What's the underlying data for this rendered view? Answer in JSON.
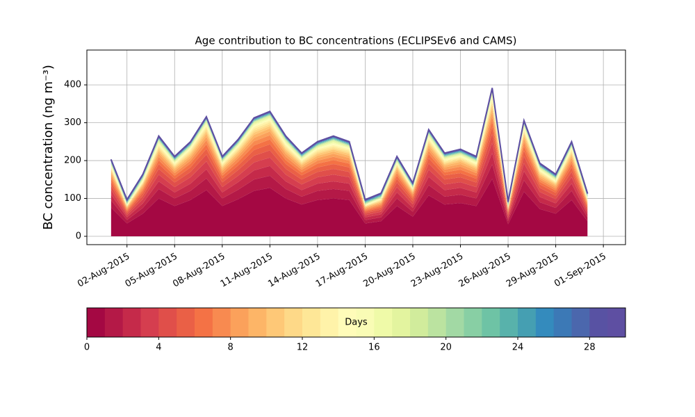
{
  "chart_data": {
    "type": "stacked_area",
    "title": "Age contribution to BC concentrations (ECLIPSEv6 and CAMS)",
    "ylabel": "BC concentration (ng m⁻³)",
    "x": [
      "2015-08-01",
      "2015-08-02",
      "2015-08-03",
      "2015-08-04",
      "2015-08-05",
      "2015-08-06",
      "2015-08-07",
      "2015-08-08",
      "2015-08-09",
      "2015-08-10",
      "2015-08-11",
      "2015-08-12",
      "2015-08-13",
      "2015-08-14",
      "2015-08-15",
      "2015-08-16",
      "2015-08-17",
      "2015-08-18",
      "2015-08-19",
      "2015-08-20",
      "2015-08-21",
      "2015-08-22",
      "2015-08-23",
      "2015-08-24",
      "2015-08-25",
      "2015-08-26",
      "2015-08-27",
      "2015-08-28",
      "2015-08-29",
      "2015-08-30",
      "2015-08-31"
    ],
    "xlim": [
      "2015-07-31",
      "2015-09-02"
    ],
    "xticks": [
      {
        "value": "2015-08-02",
        "label": "02-Aug-2015"
      },
      {
        "value": "2015-08-05",
        "label": "05-Aug-2015"
      },
      {
        "value": "2015-08-08",
        "label": "08-Aug-2015"
      },
      {
        "value": "2015-08-11",
        "label": "11-Aug-2015"
      },
      {
        "value": "2015-08-14",
        "label": "14-Aug-2015"
      },
      {
        "value": "2015-08-17",
        "label": "17-Aug-2015"
      },
      {
        "value": "2015-08-20",
        "label": "20-Aug-2015"
      },
      {
        "value": "2015-08-23",
        "label": "23-Aug-2015"
      },
      {
        "value": "2015-08-26",
        "label": "26-Aug-2015"
      },
      {
        "value": "2015-08-29",
        "label": "29-Aug-2015"
      },
      {
        "value": "2015-09-01",
        "label": "01-Sep-2015"
      }
    ],
    "ylim": [
      -22,
      492
    ],
    "yticks": [
      0,
      100,
      200,
      300,
      400
    ],
    "grid": true,
    "series": [
      {
        "color": "#a40843",
        "values": [
          76,
          34,
          60,
          100,
          80,
          96,
          122,
          80,
          98,
          120,
          128,
          100,
          84,
          96,
          100,
          96,
          34,
          40,
          80,
          52,
          108,
          84,
          88,
          80,
          152,
          32,
          118,
          72,
          60,
          96,
          40
        ]
      },
      {
        "color": "#b41947",
        "values": [
          19,
          9,
          15,
          25,
          20,
          24,
          31,
          20,
          25,
          30,
          32,
          25,
          21,
          24,
          25,
          24,
          9,
          10,
          20,
          13,
          27,
          21,
          22,
          20,
          38,
          8,
          30,
          18,
          15,
          24,
          10
        ]
      },
      {
        "color": "#c52a4a",
        "values": [
          15,
          7,
          12,
          20,
          16,
          19,
          24,
          16,
          20,
          24,
          26,
          20,
          17,
          19,
          20,
          19,
          7,
          8,
          16,
          10,
          22,
          17,
          18,
          16,
          30,
          6,
          24,
          14,
          12,
          19,
          8
        ]
      },
      {
        "color": "#d53e4f",
        "values": [
          13,
          6,
          11,
          18,
          14,
          17,
          21,
          14,
          17,
          21,
          22,
          18,
          15,
          17,
          18,
          17,
          6,
          7,
          14,
          9,
          19,
          15,
          15,
          14,
          27,
          6,
          21,
          13,
          11,
          17,
          7
        ]
      },
      {
        "color": "#e04f4a",
        "values": [
          11,
          5,
          9,
          15,
          12,
          14,
          18,
          12,
          15,
          18,
          19,
          15,
          13,
          14,
          15,
          14,
          5,
          6,
          12,
          8,
          16,
          13,
          13,
          12,
          23,
          5,
          18,
          11,
          9,
          14,
          6
        ]
      },
      {
        "color": "#ea6046",
        "values": [
          10,
          4,
          8,
          13,
          10,
          12,
          15,
          10,
          12,
          15,
          16,
          13,
          11,
          12,
          13,
          12,
          4,
          5,
          10,
          7,
          14,
          11,
          11,
          10,
          19,
          4,
          15,
          9,
          8,
          12,
          5
        ]
      },
      {
        "color": "#f47245",
        "values": [
          8,
          3,
          6,
          10,
          8,
          10,
          12,
          8,
          10,
          12,
          13,
          10,
          8,
          10,
          10,
          10,
          3,
          4,
          8,
          5,
          11,
          8,
          9,
          8,
          15,
          3,
          12,
          7,
          6,
          10,
          4
        ]
      },
      {
        "color": "#f88a50",
        "values": [
          7,
          3,
          5,
          9,
          7,
          8,
          11,
          7,
          9,
          11,
          11,
          9,
          7,
          8,
          9,
          8,
          3,
          4,
          7,
          5,
          9,
          7,
          8,
          7,
          13,
          3,
          10,
          6,
          5,
          8,
          4
        ]
      },
      {
        "color": "#fba15b",
        "values": [
          6,
          3,
          5,
          8,
          6,
          7,
          9,
          6,
          7,
          9,
          10,
          8,
          6,
          7,
          8,
          7,
          3,
          3,
          6,
          4,
          8,
          6,
          7,
          6,
          11,
          2,
          9,
          5,
          5,
          7,
          3
        ]
      },
      {
        "color": "#fdb567",
        "values": [
          5,
          2,
          4,
          6,
          5,
          6,
          8,
          5,
          6,
          8,
          8,
          6,
          5,
          6,
          6,
          6,
          2,
          3,
          5,
          3,
          7,
          5,
          6,
          5,
          10,
          2,
          7,
          5,
          4,
          6,
          3
        ]
      },
      {
        "color": "#fec877",
        "values": [
          4,
          2,
          3,
          5,
          4,
          5,
          6,
          4,
          5,
          6,
          6,
          5,
          4,
          5,
          5,
          5,
          2,
          2,
          4,
          3,
          5,
          4,
          4,
          4,
          8,
          2,
          6,
          4,
          3,
          5,
          2
        ]
      },
      {
        "color": "#fed988",
        "values": [
          3,
          1,
          2,
          4,
          3,
          4,
          5,
          3,
          4,
          5,
          5,
          4,
          3,
          4,
          4,
          4,
          1,
          2,
          3,
          2,
          4,
          3,
          3,
          3,
          6,
          1,
          4,
          3,
          2,
          4,
          2
        ]
      },
      {
        "color": "#fee797",
        "values": [
          3,
          1,
          2,
          4,
          3,
          4,
          5,
          3,
          4,
          5,
          5,
          4,
          3,
          4,
          4,
          4,
          1,
          2,
          3,
          2,
          4,
          3,
          3,
          3,
          6,
          1,
          4,
          3,
          2,
          4,
          2
        ]
      },
      {
        "color": "#fff3a9",
        "values": [
          3,
          1,
          2,
          4,
          3,
          4,
          5,
          3,
          4,
          5,
          5,
          4,
          3,
          4,
          4,
          4,
          1,
          2,
          3,
          2,
          4,
          3,
          3,
          3,
          6,
          1,
          4,
          3,
          2,
          4,
          2
        ]
      },
      {
        "color": "#fffcb9",
        "values": [
          2,
          1,
          2,
          3,
          2,
          2,
          3,
          2,
          2,
          3,
          3,
          3,
          2,
          2,
          3,
          2,
          1,
          1,
          2,
          1,
          3,
          2,
          2,
          2,
          4,
          1,
          3,
          2,
          2,
          2,
          1
        ]
      },
      {
        "color": "#f9fcb5",
        "values": [
          2,
          1,
          2,
          3,
          2,
          2,
          3,
          2,
          2,
          3,
          3,
          3,
          2,
          2,
          3,
          2,
          1,
          1,
          2,
          1,
          3,
          2,
          2,
          2,
          4,
          1,
          3,
          2,
          2,
          2,
          1
        ]
      },
      {
        "color": "#effaa8",
        "values": [
          2,
          1,
          2,
          3,
          2,
          2,
          3,
          2,
          2,
          3,
          3,
          3,
          2,
          2,
          3,
          2,
          1,
          1,
          2,
          1,
          3,
          2,
          2,
          2,
          4,
          1,
          3,
          2,
          2,
          2,
          1
        ]
      },
      {
        "color": "#e3f49f",
        "values": [
          2,
          1,
          2,
          3,
          2,
          2,
          3,
          2,
          2,
          3,
          3,
          3,
          2,
          2,
          3,
          2,
          1,
          1,
          2,
          1,
          3,
          2,
          2,
          2,
          4,
          1,
          3,
          2,
          2,
          2,
          1
        ]
      },
      {
        "color": "#d1ec9c",
        "values": [
          1,
          1,
          1,
          1,
          1,
          1,
          1,
          1,
          1,
          1,
          1,
          1,
          1,
          1,
          1,
          1,
          1,
          1,
          1,
          1,
          1,
          1,
          1,
          1,
          1,
          1,
          1,
          1,
          1,
          1,
          1
        ]
      },
      {
        "color": "#bbe3a0",
        "values": [
          1,
          1,
          1,
          1,
          1,
          1,
          1,
          1,
          1,
          1,
          1,
          1,
          1,
          1,
          1,
          1,
          1,
          1,
          1,
          1,
          1,
          1,
          1,
          1,
          1,
          1,
          1,
          1,
          1,
          1,
          1
        ]
      },
      {
        "color": "#a2d9a4",
        "values": [
          1,
          1,
          1,
          1,
          1,
          1,
          1,
          1,
          1,
          1,
          1,
          1,
          1,
          1,
          1,
          1,
          1,
          1,
          1,
          1,
          1,
          1,
          1,
          1,
          1,
          1,
          1,
          1,
          1,
          1,
          1
        ]
      },
      {
        "color": "#88cfa4",
        "values": [
          1,
          1,
          1,
          1,
          1,
          1,
          1,
          1,
          1,
          1,
          1,
          1,
          1,
          1,
          1,
          1,
          1,
          1,
          1,
          1,
          1,
          1,
          1,
          1,
          1,
          1,
          1,
          1,
          1,
          1,
          1
        ]
      },
      {
        "color": "#6ec3a5",
        "values": [
          1,
          1,
          1,
          1,
          1,
          1,
          1,
          1,
          1,
          1,
          1,
          1,
          1,
          1,
          1,
          1,
          1,
          1,
          1,
          1,
          1,
          1,
          1,
          1,
          1,
          1,
          1,
          1,
          1,
          1,
          1
        ]
      },
      {
        "color": "#58b2ab",
        "values": [
          1,
          1,
          1,
          1,
          1,
          1,
          1,
          1,
          1,
          1,
          1,
          1,
          1,
          1,
          1,
          1,
          1,
          1,
          1,
          1,
          1,
          1,
          1,
          1,
          1,
          1,
          1,
          1,
          1,
          1,
          1
        ]
      },
      {
        "color": "#459fb2",
        "values": [
          1,
          1,
          1,
          1,
          1,
          1,
          1,
          1,
          1,
          1,
          1,
          1,
          1,
          1,
          1,
          1,
          1,
          1,
          1,
          1,
          1,
          1,
          1,
          1,
          1,
          1,
          1,
          1,
          1,
          1,
          1
        ]
      },
      {
        "color": "#348bbd",
        "values": [
          1,
          1,
          1,
          1,
          1,
          1,
          1,
          1,
          1,
          1,
          1,
          1,
          1,
          1,
          1,
          1,
          1,
          1,
          1,
          1,
          1,
          1,
          1,
          1,
          1,
          1,
          1,
          1,
          1,
          1,
          1
        ]
      },
      {
        "color": "#3c79b6",
        "values": [
          1,
          1,
          1,
          1,
          1,
          1,
          1,
          1,
          1,
          1,
          1,
          1,
          1,
          1,
          1,
          1,
          1,
          1,
          1,
          1,
          1,
          1,
          1,
          1,
          1,
          1,
          1,
          1,
          1,
          1,
          1
        ]
      },
      {
        "color": "#4b67ad",
        "values": [
          1,
          1,
          1,
          1,
          1,
          1,
          1,
          1,
          1,
          1,
          1,
          1,
          1,
          1,
          1,
          1,
          1,
          1,
          1,
          1,
          1,
          1,
          1,
          1,
          1,
          1,
          1,
          1,
          1,
          1,
          1
        ]
      },
      {
        "color": "#5852a3",
        "values": [
          1,
          1,
          1,
          1,
          1,
          1,
          1,
          1,
          1,
          1,
          1,
          1,
          1,
          1,
          1,
          1,
          1,
          1,
          1,
          1,
          1,
          1,
          1,
          1,
          1,
          1,
          1,
          1,
          1,
          1,
          1
        ]
      },
      {
        "color": "#5e4fa2",
        "values": [
          1,
          1,
          1,
          1,
          1,
          1,
          1,
          1,
          1,
          1,
          1,
          1,
          1,
          1,
          1,
          1,
          1,
          1,
          1,
          1,
          1,
          1,
          1,
          1,
          1,
          1,
          1,
          1,
          1,
          1,
          1
        ]
      }
    ],
    "colorbar": {
      "label": "Days",
      "lim": [
        0,
        30
      ],
      "ticks": [
        0,
        4,
        8,
        12,
        16,
        20,
        24,
        28
      ]
    }
  }
}
